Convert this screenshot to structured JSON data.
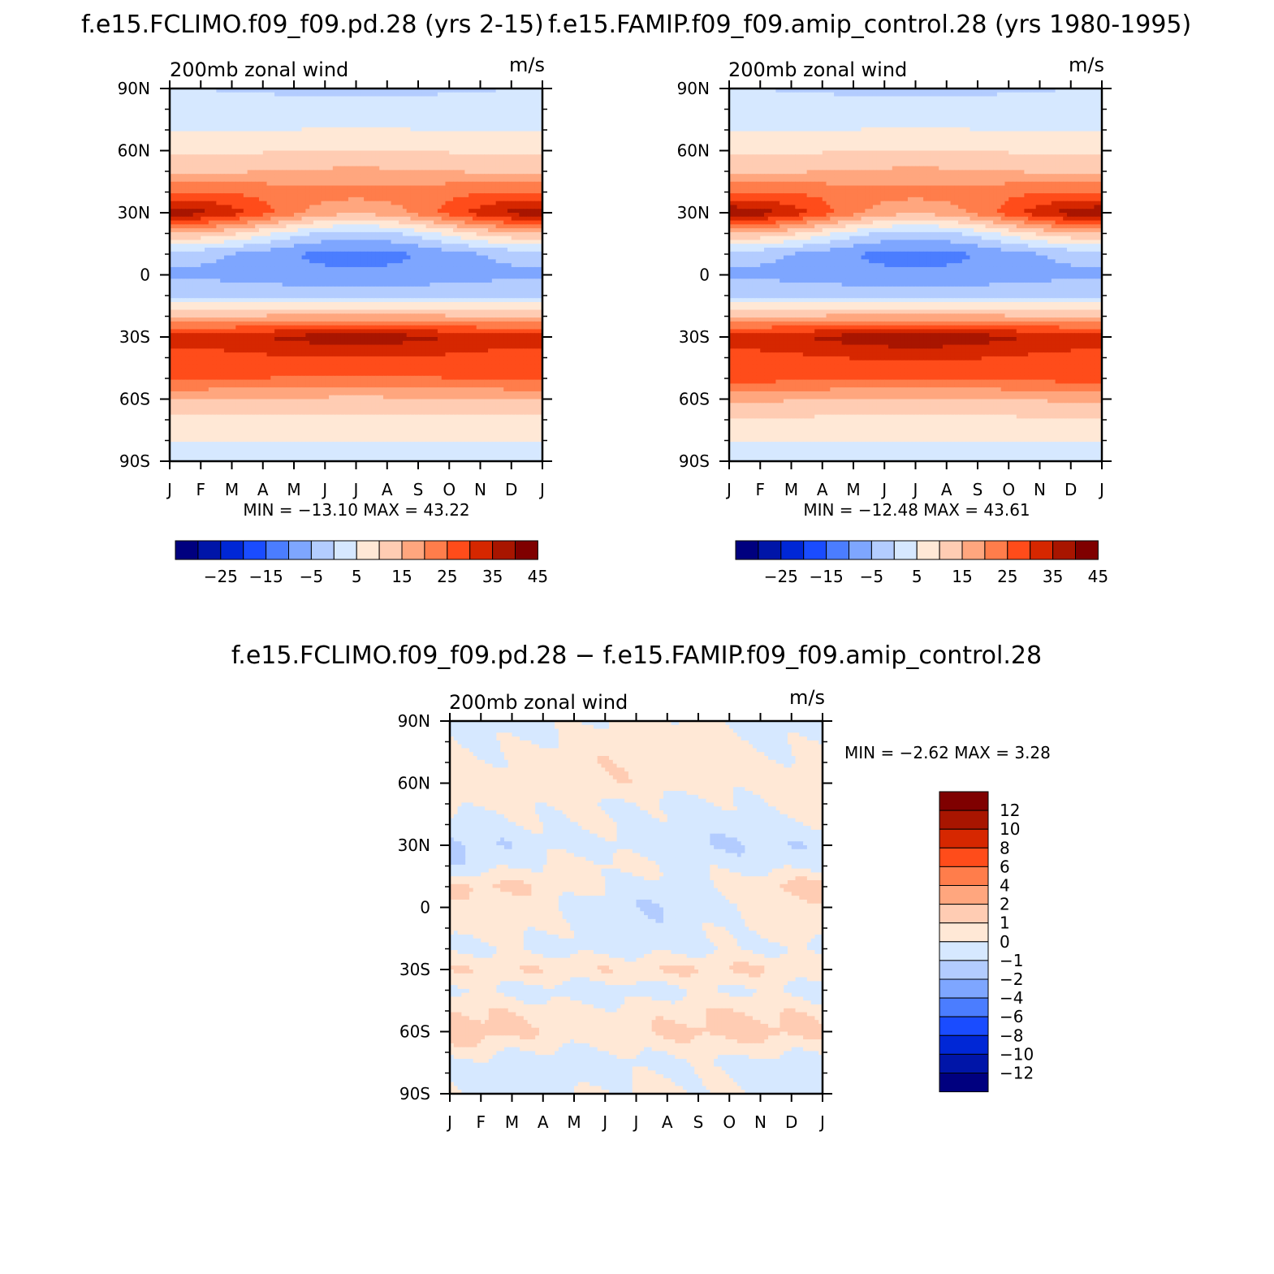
{
  "titles": {
    "left": "f.e15.FCLIMO.f09_f09.pd.28 (yrs 2-15)",
    "right": "f.e15.FAMIP.f09_f09.amip_control.28 (yrs 1980-1995)",
    "diff": "f.e15.FCLIMO.f09_f09.pd.28 − f.e15.FAMIP.f09_f09.amip_control.28"
  },
  "panel_common": {
    "subtitle": "200mb zonal wind",
    "units": "m/s"
  },
  "palettes": {
    "absolute": [
      "#00007f",
      "#0015a8",
      "#0027d6",
      "#1a4cff",
      "#4b7dff",
      "#7ea6ff",
      "#b3ccff",
      "#d6e8ff",
      "#ffe8d6",
      "#ffccb3",
      "#ffa67e",
      "#ff7d4b",
      "#ff4c1a",
      "#d62700",
      "#a81500",
      "#7f0000"
    ],
    "difference": [
      "#00007f",
      "#0015a8",
      "#0027d6",
      "#1a4cff",
      "#4b7dff",
      "#7ea6ff",
      "#b3ccff",
      "#d6e8ff",
      "#ffe8d6",
      "#ffccb3",
      "#ffa67e",
      "#ff7d4b",
      "#ff4c1a",
      "#d62700",
      "#a81500",
      "#7f0000"
    ]
  },
  "chart_data": [
    {
      "id": "climo",
      "type": "heatmap",
      "title": "f.e15.FCLIMO.f09_f09.pd.28 (yrs 2-15)",
      "subtitle": "200mb zonal wind",
      "units": "m/s",
      "x_ticks": [
        "J",
        "F",
        "M",
        "A",
        "M",
        "J",
        "J",
        "A",
        "S",
        "O",
        "N",
        "D",
        "J"
      ],
      "y_ticks": [
        "90S",
        "60S",
        "30S",
        "0",
        "30N",
        "60N",
        "90N"
      ],
      "ylim": [
        -90,
        90
      ],
      "min_label": "MIN =  −13.10  MAX =    43.22",
      "min": -13.1,
      "max": 43.22,
      "colorbar_labels": [
        "−25",
        "−15",
        "−5",
        "5",
        "15",
        "25",
        "35",
        "45"
      ],
      "levels": [
        -35,
        -30,
        -25,
        -20,
        -15,
        -10,
        -5,
        0,
        5,
        10,
        15,
        20,
        25,
        30,
        35,
        40,
        45
      ],
      "profile_lat": [
        -90,
        -75,
        -60,
        -50,
        -40,
        -30,
        -20,
        -10,
        0,
        10,
        20,
        30,
        40,
        50,
        60,
        75,
        90
      ],
      "profile_winter": [
        3,
        6,
        15,
        26,
        28,
        32,
        15,
        -1,
        -6,
        -3,
        15,
        38,
        25,
        14,
        9,
        2,
        0
      ],
      "profile_summer": [
        3,
        6,
        14,
        24,
        30,
        38,
        16,
        -2,
        -9,
        -12,
        -2,
        16,
        22,
        16,
        10,
        3,
        -1
      ]
    },
    {
      "id": "amip",
      "type": "heatmap",
      "title": "f.e15.FAMIP.f09_f09.amip_control.28 (yrs 1980-1995)",
      "subtitle": "200mb zonal wind",
      "units": "m/s",
      "x_ticks": [
        "J",
        "F",
        "M",
        "A",
        "M",
        "J",
        "J",
        "A",
        "S",
        "O",
        "N",
        "D",
        "J"
      ],
      "y_ticks": [
        "90S",
        "60S",
        "30S",
        "0",
        "30N",
        "60N",
        "90N"
      ],
      "ylim": [
        -90,
        90
      ],
      "min_label": "MIN =  −12.48  MAX =    43.61",
      "min": -12.48,
      "max": 43.61,
      "colorbar_labels": [
        "−25",
        "−15",
        "−5",
        "5",
        "15",
        "25",
        "35",
        "45"
      ],
      "levels": [
        -35,
        -30,
        -25,
        -20,
        -15,
        -10,
        -5,
        0,
        5,
        10,
        15,
        20,
        25,
        30,
        35,
        40,
        45
      ],
      "profile_lat": [
        -90,
        -75,
        -60,
        -50,
        -40,
        -30,
        -20,
        -10,
        0,
        10,
        20,
        30,
        40,
        50,
        60,
        75,
        90
      ],
      "profile_winter": [
        3,
        6,
        16,
        27,
        28,
        33,
        15,
        -1,
        -6,
        -3,
        15,
        39,
        25,
        14,
        9,
        2,
        0
      ],
      "profile_summer": [
        3,
        6,
        14,
        25,
        31,
        39,
        16,
        -2,
        -9,
        -12,
        -2,
        16,
        22,
        16,
        10,
        3,
        -1
      ]
    },
    {
      "id": "diff",
      "type": "heatmap",
      "title": "f.e15.FCLIMO.f09_f09.pd.28 − f.e15.FAMIP.f09_f09.amip_control.28",
      "subtitle": "200mb zonal wind",
      "units": "m/s",
      "x_ticks": [
        "J",
        "F",
        "M",
        "A",
        "M",
        "J",
        "J",
        "A",
        "S",
        "O",
        "N",
        "D",
        "J"
      ],
      "y_ticks": [
        "90S",
        "60S",
        "30S",
        "0",
        "30N",
        "60N",
        "90N"
      ],
      "ylim": [
        -90,
        90
      ],
      "min_label": "MIN =    −2.62  MAX =     3.28",
      "min": -2.62,
      "max": 3.28,
      "colorbar_labels": [
        "12",
        "10",
        "8",
        "6",
        "4",
        "2",
        "1",
        "0",
        "−1",
        "−2",
        "−4",
        "−6",
        "−8",
        "−10",
        "−12"
      ],
      "levels": [
        -14,
        -12,
        -10,
        -8,
        -6,
        -4,
        -2,
        -1,
        0,
        1,
        2,
        4,
        6,
        8,
        10,
        12,
        14
      ],
      "profile_lat": [
        -90,
        -75,
        -60,
        -50,
        -40,
        -30,
        -20,
        -10,
        0,
        10,
        20,
        30,
        40,
        50,
        60,
        75,
        90
      ],
      "profile_winter": [
        0,
        -0.3,
        1.5,
        0.8,
        -0.4,
        0.6,
        -0.5,
        0.3,
        0.4,
        1.2,
        -0.6,
        -1.0,
        -0.3,
        0.6,
        0.8,
        0.3,
        -0.2
      ],
      "profile_summer": [
        0,
        -0.5,
        0.9,
        0.5,
        -0.3,
        1.2,
        -0.2,
        -0.4,
        -0.6,
        -0.2,
        0.3,
        -0.5,
        -0.2,
        -0.3,
        0.5,
        0.5,
        0
      ]
    }
  ]
}
